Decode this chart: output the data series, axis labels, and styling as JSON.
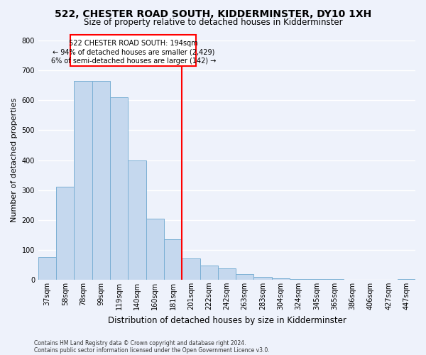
{
  "title": "522, CHESTER ROAD SOUTH, KIDDERMINSTER, DY10 1XH",
  "subtitle": "Size of property relative to detached houses in Kidderminster",
  "xlabel": "Distribution of detached houses by size in Kidderminster",
  "ylabel": "Number of detached properties",
  "categories": [
    "37sqm",
    "58sqm",
    "78sqm",
    "99sqm",
    "119sqm",
    "140sqm",
    "160sqm",
    "181sqm",
    "201sqm",
    "222sqm",
    "242sqm",
    "263sqm",
    "283sqm",
    "304sqm",
    "324sqm",
    "345sqm",
    "365sqm",
    "386sqm",
    "406sqm",
    "427sqm",
    "447sqm"
  ],
  "values": [
    75,
    310,
    665,
    665,
    610,
    400,
    205,
    135,
    70,
    48,
    38,
    18,
    10,
    5,
    2,
    2,
    1,
    0,
    0,
    0,
    2
  ],
  "bar_color": "#c5d8ee",
  "bar_edge_color": "#7aafd4",
  "background_color": "#eef2fb",
  "grid_color": "#ffffff",
  "vline_x_index": 8,
  "annotation_text_line1": "522 CHESTER ROAD SOUTH: 194sqm",
  "annotation_text_line2": "← 94% of detached houses are smaller (2,429)",
  "annotation_text_line3": "6% of semi-detached houses are larger (142) →",
  "footnote1": "Contains HM Land Registry data © Crown copyright and database right 2024.",
  "footnote2": "Contains public sector information licensed under the Open Government Licence v3.0.",
  "ylim": [
    0,
    800
  ],
  "yticks": [
    0,
    100,
    200,
    300,
    400,
    500,
    600,
    700,
    800
  ],
  "title_fontsize": 10,
  "subtitle_fontsize": 8.5,
  "ylabel_fontsize": 8,
  "xlabel_fontsize": 8.5,
  "tick_fontsize": 7,
  "annotation_fontsize": 7,
  "footnote_fontsize": 5.5
}
